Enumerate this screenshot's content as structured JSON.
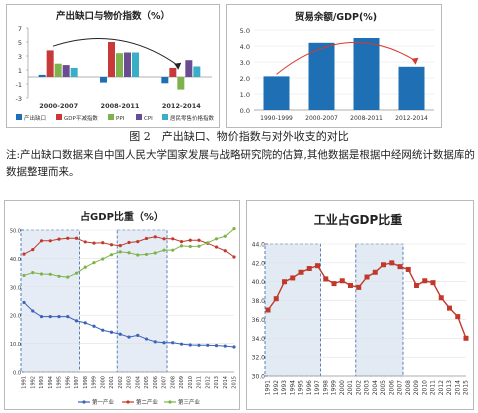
{
  "caption": {
    "figure": "图 2　产出缺口、物价指数与对外收支的对比",
    "note": "注:产出缺口数据来自中国人民大学国家发展与战略研究院的估算,其他数据是根据中经网统计数据库的数据整理而来。"
  },
  "chart_data": [
    {
      "type": "bar",
      "title": "产出缺口与物价指数（%）",
      "categories": [
        "2000-2007",
        "2008-2011",
        "2012-2014"
      ],
      "ylim": [
        -3,
        7
      ],
      "yticks": [
        -3,
        -1,
        1,
        3,
        5,
        7
      ],
      "legend_position": "bottom",
      "series": [
        {
          "name": "产出缺口",
          "color": "#1f6fb4",
          "values": [
            0.3,
            -0.8,
            -0.9
          ]
        },
        {
          "name": "GDP平减指数",
          "color": "#c83a3a",
          "values": [
            3.8,
            5.0,
            1.3
          ]
        },
        {
          "name": "PPI",
          "color": "#7fb24a",
          "values": [
            1.9,
            3.4,
            -1.8
          ]
        },
        {
          "name": "CPI",
          "color": "#6a4c93",
          "values": [
            1.7,
            3.5,
            2.4
          ]
        },
        {
          "name": "居民零售价格指数",
          "color": "#3aaec5",
          "values": [
            1.3,
            3.5,
            1.5
          ]
        }
      ]
    },
    {
      "type": "bar",
      "title": "贸易余额/GDP(%)",
      "categories": [
        "1990-1999",
        "2000-2007",
        "2008-2011",
        "2012-2014"
      ],
      "values": [
        2.1,
        4.2,
        4.5,
        2.7
      ],
      "ylim": [
        0,
        5
      ],
      "yticks": [
        "0.0",
        "1.0",
        "2.0",
        "3.0",
        "4.0",
        "5.0"
      ],
      "color": "#1f6fb4"
    },
    {
      "type": "line",
      "title": "占GDP比重（%）",
      "x": [
        "1991",
        "1992",
        "1993",
        "1994",
        "1995",
        "1996",
        "1997",
        "1998",
        "1999",
        "2000",
        "2001",
        "2002",
        "2003",
        "2004",
        "2005",
        "2006",
        "2007",
        "2008",
        "2009",
        "2010",
        "2011",
        "2012",
        "2013",
        "2014",
        "2015"
      ],
      "ylim": [
        0,
        50
      ],
      "yticks": [
        "0.0",
        "10.0",
        "20.0",
        "30.0",
        "40.0",
        "50.0"
      ],
      "legend_position": "bottom",
      "shaded_ranges": [
        [
          "1991",
          "1997"
        ],
        [
          "2002",
          "2007"
        ]
      ],
      "series": [
        {
          "name": "第一产业",
          "color": "#3b63b8",
          "values": [
            24.5,
            21.5,
            19.5,
            19.5,
            19.5,
            19.5,
            18.0,
            17.3,
            16.1,
            14.7,
            14.0,
            13.3,
            12.3,
            12.9,
            11.6,
            10.6,
            10.3,
            10.3,
            9.8,
            9.5,
            9.4,
            9.4,
            9.3,
            9.1,
            8.8
          ]
        },
        {
          "name": "第二产业",
          "color": "#c0392b",
          "values": [
            41.5,
            43.1,
            46.2,
            46.2,
            46.8,
            47.1,
            47.1,
            45.8,
            45.4,
            45.5,
            44.8,
            44.5,
            45.6,
            45.9,
            47.0,
            47.6,
            46.9,
            46.9,
            45.9,
            46.4,
            46.4,
            45.3,
            44.0,
            42.7,
            40.5
          ]
        },
        {
          "name": "第三产业",
          "color": "#7fb24a",
          "values": [
            34.0,
            35.0,
            34.5,
            34.4,
            33.7,
            33.4,
            34.8,
            36.9,
            38.5,
            39.8,
            41.3,
            42.3,
            42.0,
            41.2,
            41.4,
            41.9,
            42.9,
            42.9,
            44.4,
            44.2,
            44.3,
            45.5,
            46.9,
            47.8,
            50.5
          ]
        }
      ]
    },
    {
      "type": "line",
      "title": "工业占GDP比重",
      "x": [
        "1991",
        "1992",
        "1993",
        "1994",
        "1995",
        "1996",
        "1997",
        "1998",
        "1999",
        "2000",
        "2001",
        "2002",
        "2003",
        "2004",
        "2005",
        "2006",
        "2007",
        "2008",
        "2009",
        "2010",
        "2011",
        "2012",
        "2013",
        "2014",
        "2015"
      ],
      "ylim": [
        30,
        44
      ],
      "yticks": [
        "30.0",
        "32.0",
        "34.0",
        "36.0",
        "38.0",
        "40.0",
        "42.0",
        "44.0"
      ],
      "shaded_ranges": [
        [
          "1991",
          "1997"
        ],
        [
          "2002",
          "2007"
        ]
      ],
      "series": [
        {
          "color": "#c0392b",
          "values": [
            37.0,
            38.2,
            40.0,
            40.4,
            41.0,
            41.4,
            41.7,
            40.3,
            39.8,
            40.1,
            39.6,
            39.4,
            40.5,
            41.0,
            41.8,
            42.0,
            41.6,
            41.3,
            39.6,
            40.1,
            39.9,
            38.3,
            37.2,
            36.3,
            34.0
          ]
        }
      ]
    }
  ]
}
